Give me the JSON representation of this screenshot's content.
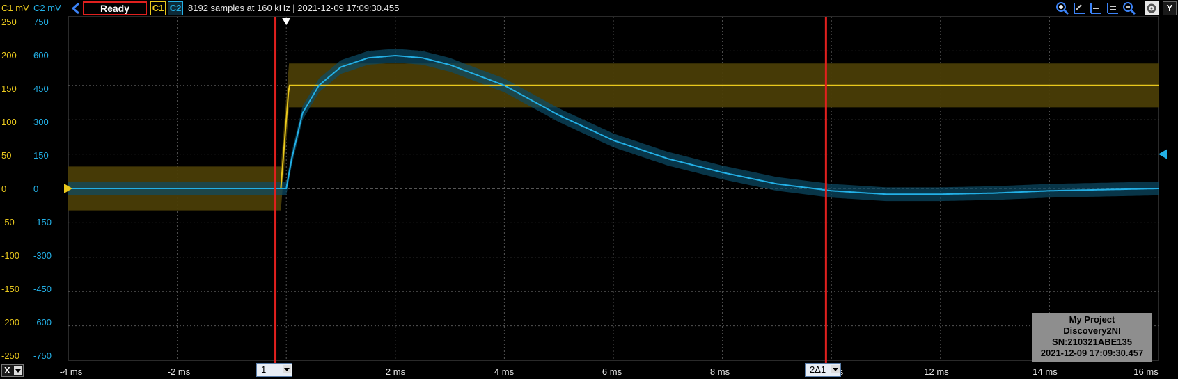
{
  "header": {
    "c1_unit": "C1 mV",
    "c2_unit": "C2 mV",
    "status": "Ready",
    "c1_chip": "C1",
    "c2_chip": "C2",
    "acquisition_info": "8192 samples at 160 kHz | 2021-12-09 17:09:30.455",
    "y_button": "Y"
  },
  "toolbar_icons": [
    "zoom-in-icon",
    "cursor-tool-icon",
    "cursor-tool-icon",
    "cursor-tool-icon",
    "zoom-out-icon",
    "settings-icon"
  ],
  "y_axis": {
    "c1_ticks": [
      "250",
      "200",
      "150",
      "100",
      "50",
      "0",
      "-50",
      "-100",
      "-150",
      "-200",
      "-250"
    ],
    "c2_ticks": [
      "750",
      "600",
      "450",
      "300",
      "150",
      "0",
      "-150",
      "-300",
      "-450",
      "-600",
      "-750"
    ]
  },
  "x_axis": {
    "selector": "X",
    "ticks": [
      "-4 ms",
      "-2 ms",
      "2 ms",
      "4 ms",
      "6 ms",
      "8 ms",
      "12 ms",
      "14 ms",
      "16 ms"
    ],
    "partial_ticks": [
      "s",
      "s"
    ]
  },
  "cursors": {
    "cursor1_label": "1",
    "cursor2_label": "2Δ1"
  },
  "device_box": {
    "line1": "My Project",
    "line2": "Discovery2NI",
    "line3": "SN:210321ABE135",
    "line4": "2021-12-09 17:09:30.457"
  },
  "colors": {
    "c1": "#e9c81d",
    "c2": "#23b0e6",
    "cursor": "#e0201e"
  },
  "chart_data": {
    "type": "line",
    "x_range_ms": [
      -4,
      16
    ],
    "c1_range_mv": [
      -250,
      250
    ],
    "c2_range_mv": [
      -750,
      750
    ],
    "cursor_x_ms": [
      -0.2,
      9.9
    ],
    "series": [
      {
        "name": "C1",
        "x": [
          -4,
          -0.1,
          0.05,
          16
        ],
        "y": [
          0,
          0,
          150,
          150
        ]
      },
      {
        "name": "C2",
        "x": [
          -4,
          0,
          0.1,
          0.3,
          0.6,
          1.0,
          1.5,
          2.0,
          2.5,
          3.0,
          4.0,
          5.0,
          6.0,
          7.0,
          8.0,
          9.0,
          10.0,
          11.0,
          12.0,
          13.0,
          14.0,
          15.0,
          16.0
        ],
        "y": [
          0,
          0,
          130,
          330,
          450,
          530,
          570,
          580,
          570,
          540,
          450,
          320,
          210,
          130,
          70,
          20,
          -10,
          -25,
          -25,
          -20,
          -10,
          -5,
          0
        ]
      }
    ]
  }
}
